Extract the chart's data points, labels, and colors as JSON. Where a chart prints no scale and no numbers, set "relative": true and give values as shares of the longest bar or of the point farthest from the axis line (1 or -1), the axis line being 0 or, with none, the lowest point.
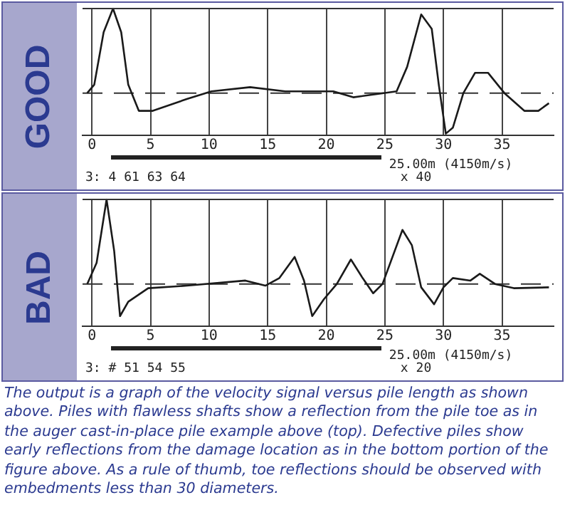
{
  "chart_data": [
    {
      "type": "line",
      "title": "GOOD",
      "relative": true,
      "grid": "x",
      "legend": false,
      "xlim": [
        -0.8,
        39.4
      ],
      "xticks": [
        0,
        5,
        10,
        15,
        20,
        25,
        30,
        35
      ],
      "ref_lines": [
        {
          "axis": "y",
          "value": 0,
          "line_style": "dashed",
          "color": "#333333"
        }
      ],
      "annotations": [
        "25.00m (4150m/s)",
        "x 40",
        "3: 4 61 63 64"
      ],
      "series": [
        {
          "color": "#1a1a1a",
          "x": [
            -0.4,
            0.2,
            1.0,
            1.8,
            2.5,
            3.1,
            4.0,
            5.2,
            8.1,
            10.2,
            13.5,
            16.5,
            20.6,
            22.3,
            26.0,
            26.9,
            28.1,
            29.0,
            29.6,
            30.2,
            30.8,
            31.7,
            32.7,
            33.8,
            35.2,
            36.9,
            38.1,
            39.0
          ],
          "values": [
            0,
            0.1,
            0.72,
            1.0,
            0.72,
            0.1,
            -0.21,
            -0.21,
            -0.07,
            0.02,
            0.07,
            0.02,
            0.02,
            -0.05,
            0.02,
            0.31,
            0.93,
            0.76,
            0.1,
            -0.48,
            -0.41,
            0,
            0.24,
            0.24,
            0,
            -0.21,
            -0.21,
            -0.12
          ]
        }
      ]
    },
    {
      "type": "line",
      "title": "BAD",
      "relative": true,
      "grid": "x",
      "legend": false,
      "xlim": [
        -0.8,
        39.4
      ],
      "xticks": [
        0,
        5,
        10,
        15,
        20,
        25,
        30,
        35
      ],
      "ref_lines": [
        {
          "axis": "y",
          "value": 0,
          "line_style": "dashed",
          "color": "#333333"
        }
      ],
      "annotations": [
        "25.00m (4150m/s)",
        "x 20",
        "3: # 51 54 55",
        "The output is a graph of the velocity signal versus pile length as shown above.  Piles with flawless shafts show a reflection from the pile toe as in the auger cast-in-place pile example above (top).  Defective piles show early reflections from the damage location as in the bottom portion of the figure above.  As a rule of thumb, toe reflections should be observed with embedments less than 30 diameters."
      ],
      "series": [
        {
          "color": "#1a1a1a",
          "x": [
            -0.4,
            0.4,
            1.25,
            1.9,
            2.4,
            3.1,
            4.8,
            8.1,
            13.1,
            14.8,
            16.0,
            17.3,
            18.1,
            18.8,
            19.8,
            20.9,
            22.1,
            23.1,
            24.0,
            24.8,
            26.5,
            27.3,
            28.1,
            29.2,
            30.0,
            30.8,
            32.3,
            33.1,
            34.4,
            36.0,
            39.0
          ],
          "values": [
            0,
            0.25,
            1.0,
            0.39,
            -0.38,
            -0.21,
            -0.05,
            -0.02,
            0.04,
            -0.02,
            0.07,
            0.32,
            0.04,
            -0.38,
            -0.18,
            0,
            0.29,
            0.07,
            -0.11,
            0,
            0.64,
            0.46,
            -0.04,
            -0.24,
            -0.04,
            0.07,
            0.04,
            0.12,
            0,
            -0.05,
            -0.04
          ]
        }
      ]
    }
  ]
}
